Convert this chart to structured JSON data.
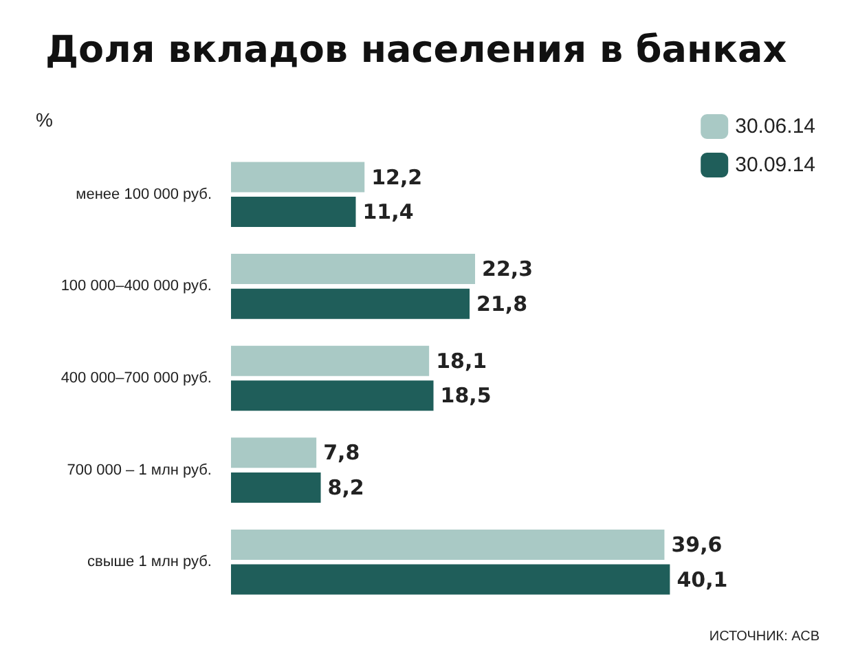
{
  "chart_data": {
    "type": "bar",
    "orientation": "horizontal",
    "title": "Доля вкладов населения в банках",
    "ylabel": "%",
    "categories": [
      "менее 100 000 руб.",
      "100 000–400 000 руб.",
      "400 000–700 000 руб.",
      "700 000 – 1 млн руб.",
      "свыше 1 млн руб."
    ],
    "series": [
      {
        "name": "30.06.14",
        "color": "#a9c9c5",
        "values": [
          12.2,
          22.3,
          18.1,
          7.8,
          39.6
        ],
        "value_labels": [
          "12,2",
          "22,3",
          "18,1",
          "7,8",
          "39,6"
        ]
      },
      {
        "name": "30.09.14",
        "color": "#1f5e5a",
        "values": [
          11.4,
          21.8,
          18.5,
          8.2,
          40.1
        ],
        "value_labels": [
          "11,4",
          "21,8",
          "18,5",
          "8,2",
          "40,1"
        ]
      }
    ],
    "legend": "top right",
    "annotations": [
      "ИСТОЧНИК: АСВ"
    ]
  }
}
